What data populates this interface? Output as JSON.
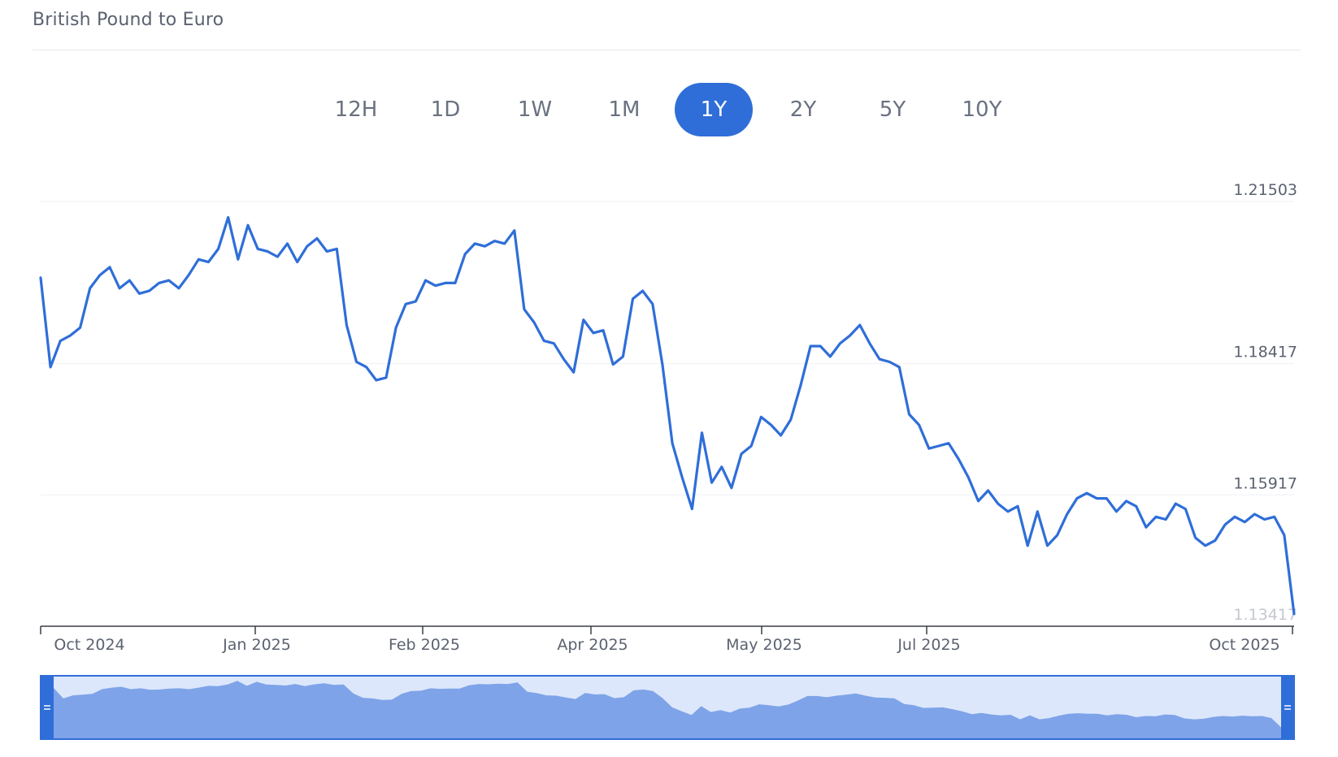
{
  "title": "British Pound to Euro",
  "ranges": [
    "12H",
    "1D",
    "1W",
    "1M",
    "1Y",
    "2Y",
    "5Y",
    "10Y"
  ],
  "active_range": "1Y",
  "colors": {
    "accent": "#2f6ed8",
    "line": "#2f6ed8",
    "navigator_fill": "#7ea3e8",
    "navigator_bg": "#dce7fb",
    "grid": "#eef0f3",
    "text": "#5b6270"
  },
  "chart_data": {
    "type": "line",
    "title": "British Pound to Euro",
    "xlabel": "",
    "ylabel": "",
    "ylim": [
      1.13417,
      1.21503
    ],
    "yticks": [
      "1.21503",
      "1.18417",
      "1.15917",
      "1.13417"
    ],
    "xticks": [
      "Oct 2024",
      "Jan 2025",
      "Feb 2025",
      "Apr 2025",
      "May 2025",
      "Jul 2025",
      "Oct 2025"
    ],
    "grid": true,
    "navigator": true,
    "series": [
      {
        "values": [
          1.2005,
          1.1835,
          1.1885,
          1.1895,
          1.191,
          1.1985,
          1.201,
          1.2025,
          1.1985,
          1.2,
          1.1975,
          1.198,
          1.1995,
          1.2,
          1.1985,
          1.201,
          1.204,
          1.2035,
          1.206,
          1.212,
          1.204,
          1.2105,
          1.206,
          1.2055,
          1.2045,
          1.207,
          1.2035,
          1.2065,
          1.208,
          1.2055,
          1.206,
          1.1915,
          1.1845,
          1.1835,
          1.181,
          1.1815,
          1.191,
          1.1955,
          1.196,
          1.2,
          1.199,
          1.1995,
          1.1995,
          1.205,
          1.207,
          1.2065,
          1.2075,
          1.207,
          1.2095,
          1.1945,
          1.192,
          1.1885,
          1.188,
          1.185,
          1.1825,
          1.1925,
          1.19,
          1.1905,
          1.184,
          1.1855,
          1.1965,
          1.198,
          1.1955,
          1.184,
          1.169,
          1.1625,
          1.1565,
          1.171,
          1.1615,
          1.1645,
          1.1605,
          1.167,
          1.1685,
          1.174,
          1.1725,
          1.1705,
          1.1735,
          1.18,
          1.1875,
          1.1875,
          1.1855,
          1.188,
          1.1895,
          1.1915,
          1.188,
          1.185,
          1.1845,
          1.1835,
          1.1745,
          1.1725,
          1.168,
          1.1685,
          1.169,
          1.166,
          1.1625,
          1.158,
          1.16,
          1.1575,
          1.156,
          1.157,
          1.1495,
          1.156,
          1.1495,
          1.1515,
          1.1555,
          1.1585,
          1.1595,
          1.1585,
          1.1585,
          1.156,
          1.158,
          1.157,
          1.153,
          1.155,
          1.1545,
          1.1575,
          1.1565,
          1.151,
          1.1495,
          1.1505,
          1.1535,
          1.155,
          1.154,
          1.1555,
          1.1545,
          1.155,
          1.1515,
          1.1365
        ]
      }
    ]
  }
}
